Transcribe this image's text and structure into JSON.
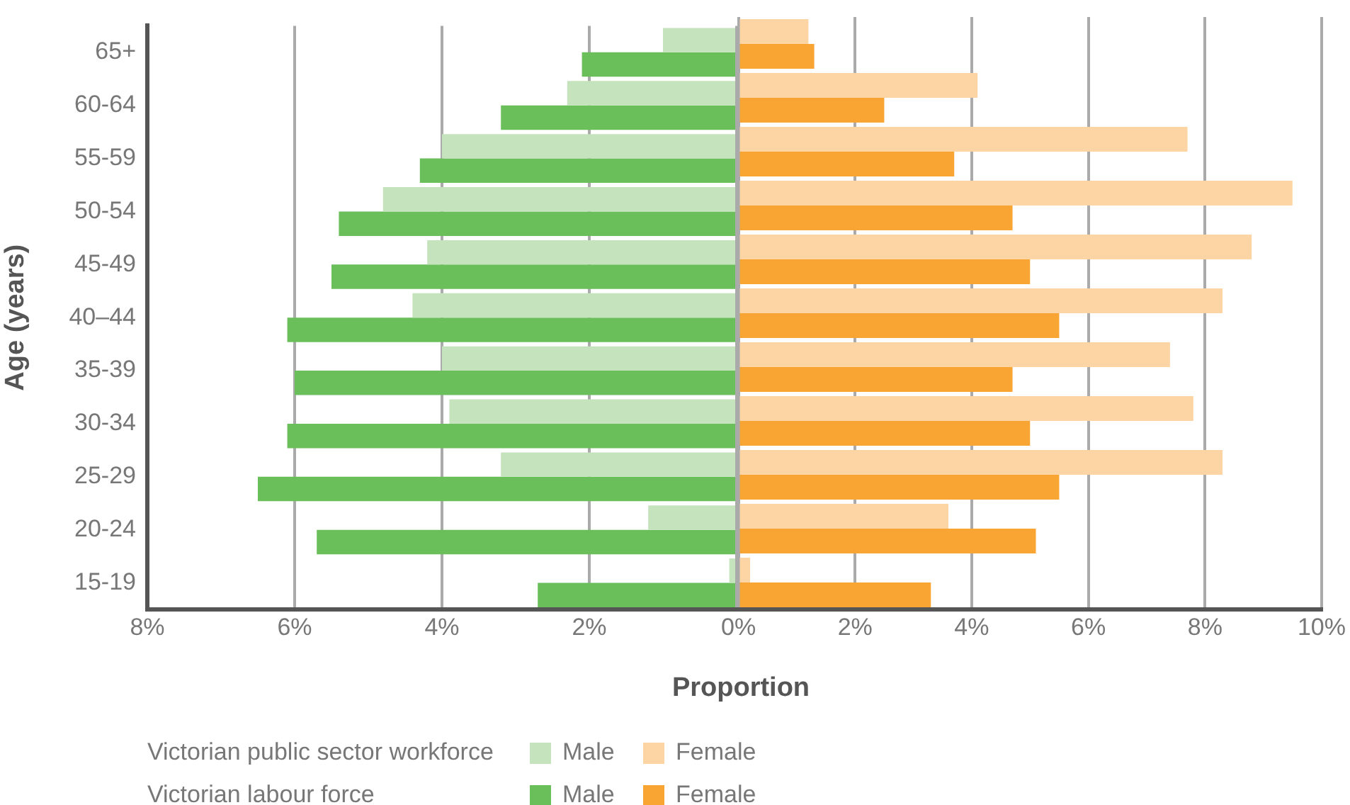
{
  "chart_data": [
    {
      "type": "bar",
      "orientation": "horizontal",
      "ylabel": "Age (years)",
      "xlabel": "Proportion",
      "categories": [
        "65+",
        "60-64",
        "55-59",
        "50-54",
        "45-49",
        "40–44",
        "35-39",
        "30-34",
        "25-29",
        "20-24",
        "15-19"
      ],
      "series": [
        {
          "name": "Male",
          "color": "#c5e3bd",
          "values": [
            1.0,
            2.3,
            4.0,
            4.8,
            4.2,
            4.4,
            4.0,
            3.9,
            3.2,
            1.2,
            0.1
          ]
        },
        {
          "name": "Male",
          "color": "#6abf5a",
          "values": [
            2.1,
            3.2,
            4.3,
            5.4,
            5.5,
            6.1,
            6.0,
            6.1,
            6.5,
            5.7,
            2.7
          ]
        }
      ],
      "xlim": [
        8,
        0
      ],
      "xticks": [
        {
          "value": 8,
          "label": "8%"
        },
        {
          "value": 6,
          "label": "6%"
        },
        {
          "value": 4,
          "label": "4%"
        },
        {
          "value": 2,
          "label": "2%"
        },
        {
          "value": 0,
          "label": null
        }
      ],
      "grid": "x",
      "legend": "bottom",
      "annotations": [
        "Victorian public sector workforce",
        "Victorian labour force"
      ]
    },
    {
      "type": "bar",
      "orientation": "horizontal",
      "categories": [
        null,
        null,
        null,
        null,
        null,
        null,
        null,
        null,
        null,
        null,
        null
      ],
      "series": [
        {
          "name": "Female",
          "color": "#fdd5a5",
          "values": [
            1.2,
            4.1,
            7.7,
            9.5,
            8.8,
            8.3,
            7.4,
            7.8,
            8.3,
            3.6,
            0.2
          ]
        },
        {
          "name": "Female",
          "color": "#f9a533",
          "values": [
            1.3,
            2.5,
            3.7,
            4.7,
            5.0,
            5.5,
            4.7,
            5.0,
            5.5,
            5.1,
            3.3
          ]
        }
      ],
      "xlim": [
        0,
        10
      ],
      "xticks": [
        {
          "value": 0,
          "label": "0%"
        },
        {
          "value": 2,
          "label": "2%"
        },
        {
          "value": 4,
          "label": "4%"
        },
        {
          "value": 6,
          "label": "6%"
        },
        {
          "value": 8,
          "label": "8%"
        },
        {
          "value": 10,
          "label": "10%"
        }
      ],
      "grid": "x",
      "legend": "bottom",
      "tick_labels": "x"
    }
  ]
}
